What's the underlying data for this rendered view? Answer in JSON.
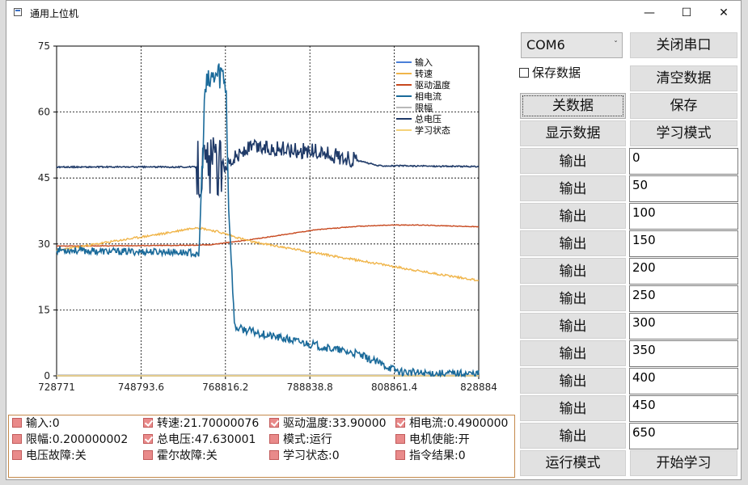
{
  "window": {
    "title": "通用上位机"
  },
  "chart_data": {
    "type": "line",
    "y_ticks": [
      "75",
      "60",
      "45",
      "30",
      "15",
      "0"
    ],
    "ylim": [
      0,
      75
    ],
    "x_ticks": [
      "728771",
      "748793.6",
      "768816.2",
      "788838.8",
      "808861.4",
      "828884"
    ],
    "xlim": [
      728771,
      828884
    ],
    "grid": true,
    "legend_position": "top-right",
    "series": [
      {
        "name": "输入",
        "color": "#4a7fd8",
        "x": [
          728771,
          828884
        ],
        "values": [
          0,
          0
        ]
      },
      {
        "name": "转速",
        "color": "#f0b54a",
        "x": [
          728771,
          735000,
          745000,
          755000,
          762000,
          767000,
          775000,
          790000,
          805000,
          815000,
          828884
        ],
        "values": [
          28.5,
          29.5,
          31,
          32.5,
          33.8,
          32.8,
          30.5,
          28,
          25.5,
          23.8,
          21.7
        ]
      },
      {
        "name": "驱动温度",
        "color": "#c7481e",
        "x": [
          728771,
          745000,
          760000,
          765000,
          775000,
          790000,
          800000,
          808000,
          815000,
          828884
        ],
        "values": [
          29.5,
          29.6,
          29.7,
          29.8,
          31,
          33.2,
          34.0,
          34.3,
          34.3,
          33.9
        ]
      },
      {
        "name": "相电流",
        "color": "#1a6a9a",
        "x": [
          728771,
          740000,
          755000,
          761000,
          762500,
          764000,
          766000,
          768000,
          769000,
          769500,
          771000,
          780000,
          790000,
          800000,
          805000,
          810000,
          815000,
          828884
        ],
        "values": [
          28.7,
          28.3,
          28.2,
          28.0,
          27,
          65,
          68,
          69,
          66,
          40,
          11,
          9,
          7,
          5,
          3,
          1,
          0.6,
          0.49
        ]
      },
      {
        "name": "限幅",
        "color": "#b8b8b8",
        "x": [
          728771,
          828884
        ],
        "values": [
          0.2,
          0.2
        ]
      },
      {
        "name": "总电压",
        "color": "#1f3a68",
        "x": [
          728771,
          761000,
          762000,
          765000,
          768000,
          770000,
          775000,
          790000,
          800000,
          805000,
          828884
        ],
        "values": [
          47.5,
          47.5,
          47.5,
          47.6,
          47.6,
          49,
          52,
          51,
          49,
          47.8,
          47.6
        ]
      },
      {
        "name": "学习状态",
        "color": "#f5d27a",
        "x": [
          728771,
          828884
        ],
        "values": [
          0,
          0
        ]
      }
    ]
  },
  "status": {
    "items": [
      {
        "label": "输入:0",
        "checked": false
      },
      {
        "label": "转速:21.70000076",
        "checked": true
      },
      {
        "label": "驱动温度:33.90000",
        "checked": true
      },
      {
        "label": "相电流:0.4900000",
        "checked": true
      },
      {
        "label": "限幅:0.200000002",
        "checked": false
      },
      {
        "label": "总电压:47.630001",
        "checked": true
      },
      {
        "label": "模式:运行",
        "checked": false
      },
      {
        "label": "电机使能:开",
        "checked": false
      },
      {
        "label": "电压故障:关",
        "checked": false
      },
      {
        "label": "霍尔故障:关",
        "checked": false
      },
      {
        "label": "学习状态:0",
        "checked": false
      },
      {
        "label": "指令结果:0",
        "checked": false
      }
    ]
  },
  "controls": {
    "port": "COM6",
    "close_port": "关闭串口",
    "save_data_checkbox": "保存数据",
    "clear_data": "清空数据",
    "close_data": "关数据",
    "save": "保存",
    "show_data": "显示数据",
    "learn_mode": "学习模式",
    "output_label": "输出",
    "outputs": [
      "0",
      "50",
      "100",
      "150",
      "200",
      "250",
      "300",
      "350",
      "400",
      "450",
      "650"
    ],
    "run_mode": "运行模式",
    "start_learning": "开始学习"
  }
}
